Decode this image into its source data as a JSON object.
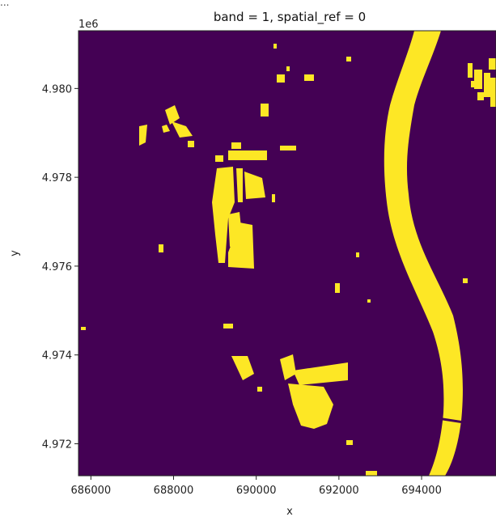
{
  "notebook": {
    "truncated_output": "..."
  },
  "chart_data": {
    "type": "heatmap",
    "title": "band = 1, spatial_ref = 0",
    "xlabel": "x",
    "ylabel": "y",
    "y_offset_label": "1e6",
    "xlim": [
      685700,
      695800
    ],
    "ylim": [
      4.97128,
      4.9813
    ],
    "xticks": [
      686000,
      688000,
      690000,
      692000,
      694000
    ],
    "xtick_labels": [
      "686000",
      "688000",
      "690000",
      "692000",
      "694000"
    ],
    "yticks": [
      4.972,
      4.974,
      4.976,
      4.978,
      4.98
    ],
    "ytick_labels": [
      "4.972",
      "4.974",
      "4.976",
      "4.978",
      "4.980"
    ],
    "grid": false,
    "colors": {
      "background": "#440154",
      "foreground": "#fde725"
    },
    "values_shown": [
      0,
      1
    ]
  }
}
